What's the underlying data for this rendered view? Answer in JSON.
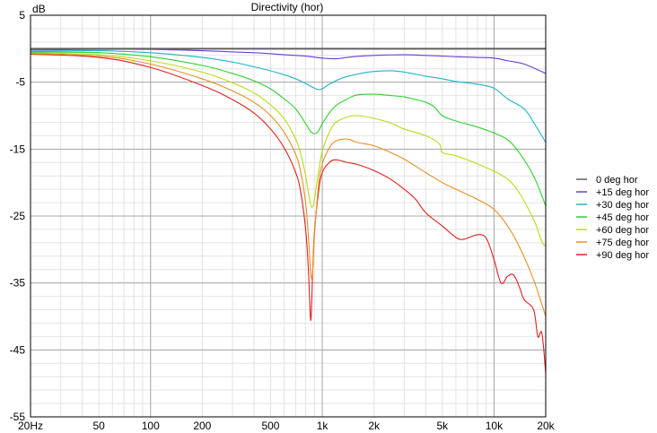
{
  "chart_data": {
    "type": "line",
    "title": "Directivity (hor)",
    "ylabel": "dB",
    "xscale": "log",
    "xlim": [
      20,
      20000
    ],
    "ylim": [
      -55,
      5
    ],
    "grid": true,
    "legend_position": "right",
    "x_ticks": [
      {
        "value": 20,
        "label": "20Hz"
      },
      {
        "value": 50,
        "label": "50"
      },
      {
        "value": 100,
        "label": "100"
      },
      {
        "value": 200,
        "label": "200"
      },
      {
        "value": 500,
        "label": "500"
      },
      {
        "value": 1000,
        "label": "1k"
      },
      {
        "value": 2000,
        "label": "2k"
      },
      {
        "value": 5000,
        "label": "5k"
      },
      {
        "value": 10000,
        "label": "10k"
      },
      {
        "value": 20000,
        "label": "20k"
      }
    ],
    "y_ticks": [
      {
        "value": 5,
        "label": "5"
      },
      {
        "value": -5,
        "label": "-5"
      },
      {
        "value": -15,
        "label": "-15"
      },
      {
        "value": -25,
        "label": "-25"
      },
      {
        "value": -35,
        "label": "-35"
      },
      {
        "value": -45,
        "label": "-45"
      },
      {
        "value": -55,
        "label": "-55"
      }
    ],
    "series": [
      {
        "name": "0 deg hor",
        "color": "#606060",
        "x": [
          20,
          20000
        ],
        "y": [
          0,
          0
        ]
      },
      {
        "name": "+15 deg hor",
        "color": "#6a3fd6",
        "x": [
          20,
          50,
          100,
          200,
          400,
          600,
          800,
          1000,
          1200,
          1500,
          2000,
          3000,
          4000,
          5000,
          6000,
          8000,
          10000,
          12000,
          15000,
          20000
        ],
        "y": [
          -0.2,
          -0.1,
          -0.1,
          -0.3,
          -0.6,
          -0.9,
          -1.1,
          -1.4,
          -1.5,
          -1.2,
          -1.0,
          -0.9,
          -1.0,
          -1.1,
          -1.2,
          -1.3,
          -1.4,
          -1.8,
          -2.3,
          -3.7
        ]
      },
      {
        "name": "+30 deg hor",
        "color": "#1fb3c8",
        "x": [
          20,
          50,
          100,
          200,
          300,
          400,
          500,
          600,
          700,
          800,
          900,
          950,
          1000,
          1100,
          1300,
          1600,
          2000,
          2500,
          3000,
          4000,
          5000,
          6000,
          8000,
          10000,
          12000,
          15000,
          17000,
          20000
        ],
        "y": [
          -0.4,
          -0.3,
          -0.6,
          -1.3,
          -2.0,
          -2.7,
          -3.3,
          -3.9,
          -4.5,
          -5.2,
          -5.9,
          -6.1,
          -6.0,
          -5.3,
          -4.4,
          -3.8,
          -3.4,
          -3.3,
          -3.5,
          -4.1,
          -4.5,
          -4.9,
          -5.3,
          -5.9,
          -7.5,
          -9.0,
          -11.0,
          -14.0
        ]
      },
      {
        "name": "+45 deg hor",
        "color": "#2ed12e",
        "x": [
          20,
          50,
          100,
          200,
          300,
          400,
          500,
          600,
          700,
          800,
          850,
          900,
          950,
          1000,
          1100,
          1200,
          1400,
          1600,
          2000,
          2500,
          3000,
          3500,
          4000,
          4500,
          5000,
          6000,
          8000,
          10000,
          12000,
          14000,
          17000,
          20000
        ],
        "y": [
          -0.5,
          -0.6,
          -1.2,
          -2.5,
          -3.7,
          -4.8,
          -6.0,
          -7.5,
          -9.0,
          -11.2,
          -12.3,
          -12.7,
          -12.3,
          -11.2,
          -9.6,
          -8.5,
          -7.5,
          -6.9,
          -6.8,
          -7.0,
          -7.2,
          -7.6,
          -8.0,
          -8.7,
          -10.0,
          -10.8,
          -11.7,
          -12.6,
          -13.6,
          -15.5,
          -19.0,
          -23.5
        ]
      },
      {
        "name": "+60 deg hor",
        "color": "#b7dc16",
        "x": [
          20,
          50,
          100,
          200,
          300,
          400,
          500,
          600,
          700,
          750,
          800,
          850,
          880,
          900,
          950,
          1000,
          1100,
          1200,
          1400,
          1600,
          2000,
          2500,
          3000,
          4000,
          4800,
          5000,
          6000,
          8000,
          10000,
          12000,
          14000,
          17000,
          19000,
          20000
        ],
        "y": [
          -0.6,
          -0.9,
          -1.8,
          -3.5,
          -5.1,
          -6.6,
          -8.4,
          -10.5,
          -13.5,
          -15.8,
          -19.0,
          -23.0,
          -23.6,
          -22.5,
          -18.5,
          -15.3,
          -12.5,
          -11.0,
          -10.2,
          -10.0,
          -10.4,
          -11.1,
          -12.0,
          -13.0,
          -14.2,
          -15.5,
          -16.0,
          -17.2,
          -18.3,
          -19.5,
          -21.5,
          -25.5,
          -28.8,
          -29.5
        ]
      },
      {
        "name": "+75 deg hor",
        "color": "#e79024",
        "x": [
          20,
          50,
          100,
          200,
          300,
          400,
          500,
          600,
          700,
          750,
          800,
          830,
          860,
          880,
          900,
          950,
          1000,
          1100,
          1200,
          1400,
          1600,
          2000,
          2500,
          3000,
          4000,
          5000,
          6000,
          8000,
          10000,
          12000,
          14000,
          17000,
          20000
        ],
        "y": [
          -0.7,
          -1.1,
          -2.3,
          -4.5,
          -6.3,
          -8.0,
          -10.0,
          -12.5,
          -15.8,
          -18.5,
          -23.0,
          -28.0,
          -34.0,
          -33.0,
          -28.0,
          -20.5,
          -17.2,
          -14.8,
          -13.8,
          -13.5,
          -14.0,
          -14.5,
          -15.5,
          -16.5,
          -18.5,
          -20.0,
          -21.0,
          -22.5,
          -24.0,
          -26.5,
          -29.5,
          -34.5,
          -40.0
        ]
      },
      {
        "name": "+90 deg hor",
        "color": "#e02020",
        "x": [
          20,
          50,
          100,
          200,
          300,
          400,
          500,
          600,
          700,
          750,
          800,
          830,
          850,
          860,
          870,
          880,
          900,
          950,
          1000,
          1100,
          1200,
          1400,
          1600,
          2000,
          2500,
          3000,
          3500,
          4000,
          5000,
          6000,
          6500,
          7000,
          8000,
          9000,
          10000,
          11000,
          12000,
          13000,
          14000,
          15000,
          17000,
          18000,
          19000,
          20000
        ],
        "y": [
          -0.8,
          -1.3,
          -2.8,
          -5.5,
          -7.6,
          -9.6,
          -12.0,
          -14.8,
          -18.5,
          -21.5,
          -27.0,
          -33.0,
          -39.5,
          -40.3,
          -37.0,
          -33.0,
          -27.5,
          -21.5,
          -18.5,
          -17.0,
          -16.6,
          -17.0,
          -17.3,
          -18.2,
          -19.5,
          -21.0,
          -22.5,
          -24.5,
          -26.5,
          -28.2,
          -28.5,
          -28.3,
          -27.8,
          -28.3,
          -31.5,
          -35.0,
          -34.0,
          -33.8,
          -35.5,
          -37.5,
          -39.0,
          -43.0,
          -42.5,
          -48.5
        ]
      }
    ]
  }
}
